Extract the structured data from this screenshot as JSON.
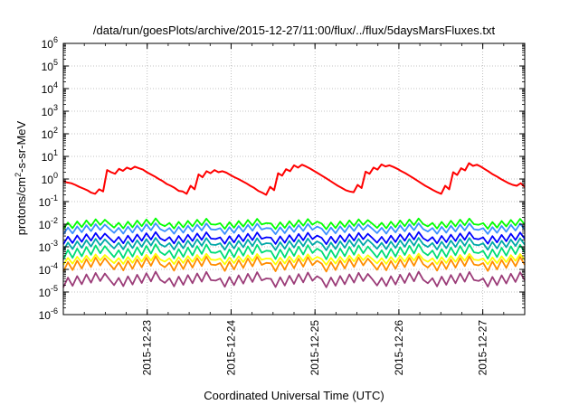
{
  "chart_data": {
    "type": "line",
    "title": "/data/run/goesPlots/archive/2015-12-27/11:00/flux/../flux/5daysMarsFluxes.txt",
    "xlabel": "Coordinated Universal Time (UTC)",
    "ylabel": {
      "base": "protons/cm",
      "sup": "2",
      "rest": "-s-sr-MeV"
    },
    "y_scale": "log",
    "ylim": [
      1e-06,
      1000000.0
    ],
    "y_tick_exponents": [
      -6,
      -5,
      -4,
      -3,
      -2,
      -1,
      0,
      1,
      2,
      3,
      4,
      5,
      6
    ],
    "x_tick_labels": [
      "2015-12-23",
      "2015-12-24",
      "2015-12-25",
      "2015-12-26",
      "2015-12-27"
    ],
    "xlim": [
      "2015-12-22T00:00",
      "2015-12-27T12:00"
    ],
    "grid": true,
    "cycle_hours": 24.6,
    "series": [
      {
        "color": "#ff0000",
        "values": [
          0.8,
          0.7,
          0.65,
          0.55,
          0.45,
          0.38,
          0.32,
          0.25,
          0.22,
          0.35,
          0.28,
          2.5,
          2.0,
          1.7,
          2.8,
          2.3,
          3.2,
          2.7,
          3.5,
          3.0,
          2.6,
          2.0,
          1.6,
          1.3,
          1.0,
          0.8,
          0.6,
          0.5,
          0.4,
          0.3,
          0.28,
          0.22,
          0.5,
          0.35,
          1.6,
          1.2,
          2.2,
          1.8,
          2.5,
          2.0,
          2.2,
          1.9,
          1.5,
          1.2,
          1.0,
          0.8,
          0.65,
          0.5,
          0.4,
          0.3,
          0.25,
          0.2,
          0.45,
          0.32,
          1.8,
          1.4,
          2.7,
          2.2,
          4.0,
          3.2,
          4.3,
          3.6,
          2.9,
          2.3,
          1.8,
          1.4,
          1.1,
          0.85,
          0.65,
          0.5,
          0.4,
          0.32,
          0.28,
          0.26,
          0.55,
          0.4,
          2.1,
          1.7,
          3.2,
          2.6,
          4.4,
          3.6,
          4.0,
          3.4,
          2.8,
          2.2,
          1.8,
          1.4,
          1.1,
          0.85,
          0.65,
          0.5,
          0.4,
          0.32,
          0.26,
          0.22,
          0.5,
          0.35,
          2.0,
          1.5,
          3.0,
          2.4,
          5.0,
          3.8,
          4.3,
          3.5,
          2.7,
          2.1,
          1.6,
          1.3,
          1.0,
          0.8,
          0.65,
          0.55,
          0.5,
          0.65,
          0.45
        ]
      },
      {
        "color": "#00ff00",
        "min": 0.006,
        "max": 0.018
      },
      {
        "color": "#3a8fff",
        "min": 0.0035,
        "max": 0.011
      },
      {
        "color": "#0000ff",
        "min": 0.0013,
        "max": 0.0045
      },
      {
        "color": "#00a8a8",
        "min": 0.0007,
        "max": 0.0025
      },
      {
        "color": "#00dd77",
        "min": 0.00028,
        "max": 0.0013
      },
      {
        "color": "#ffff00",
        "min": 0.00016,
        "max": 0.0005
      },
      {
        "color": "#ff8c00",
        "min": 8e-05,
        "max": 0.00038
      },
      {
        "color": "#9b3c78",
        "min": 1.6e-05,
        "max": 8e-05
      }
    ]
  }
}
